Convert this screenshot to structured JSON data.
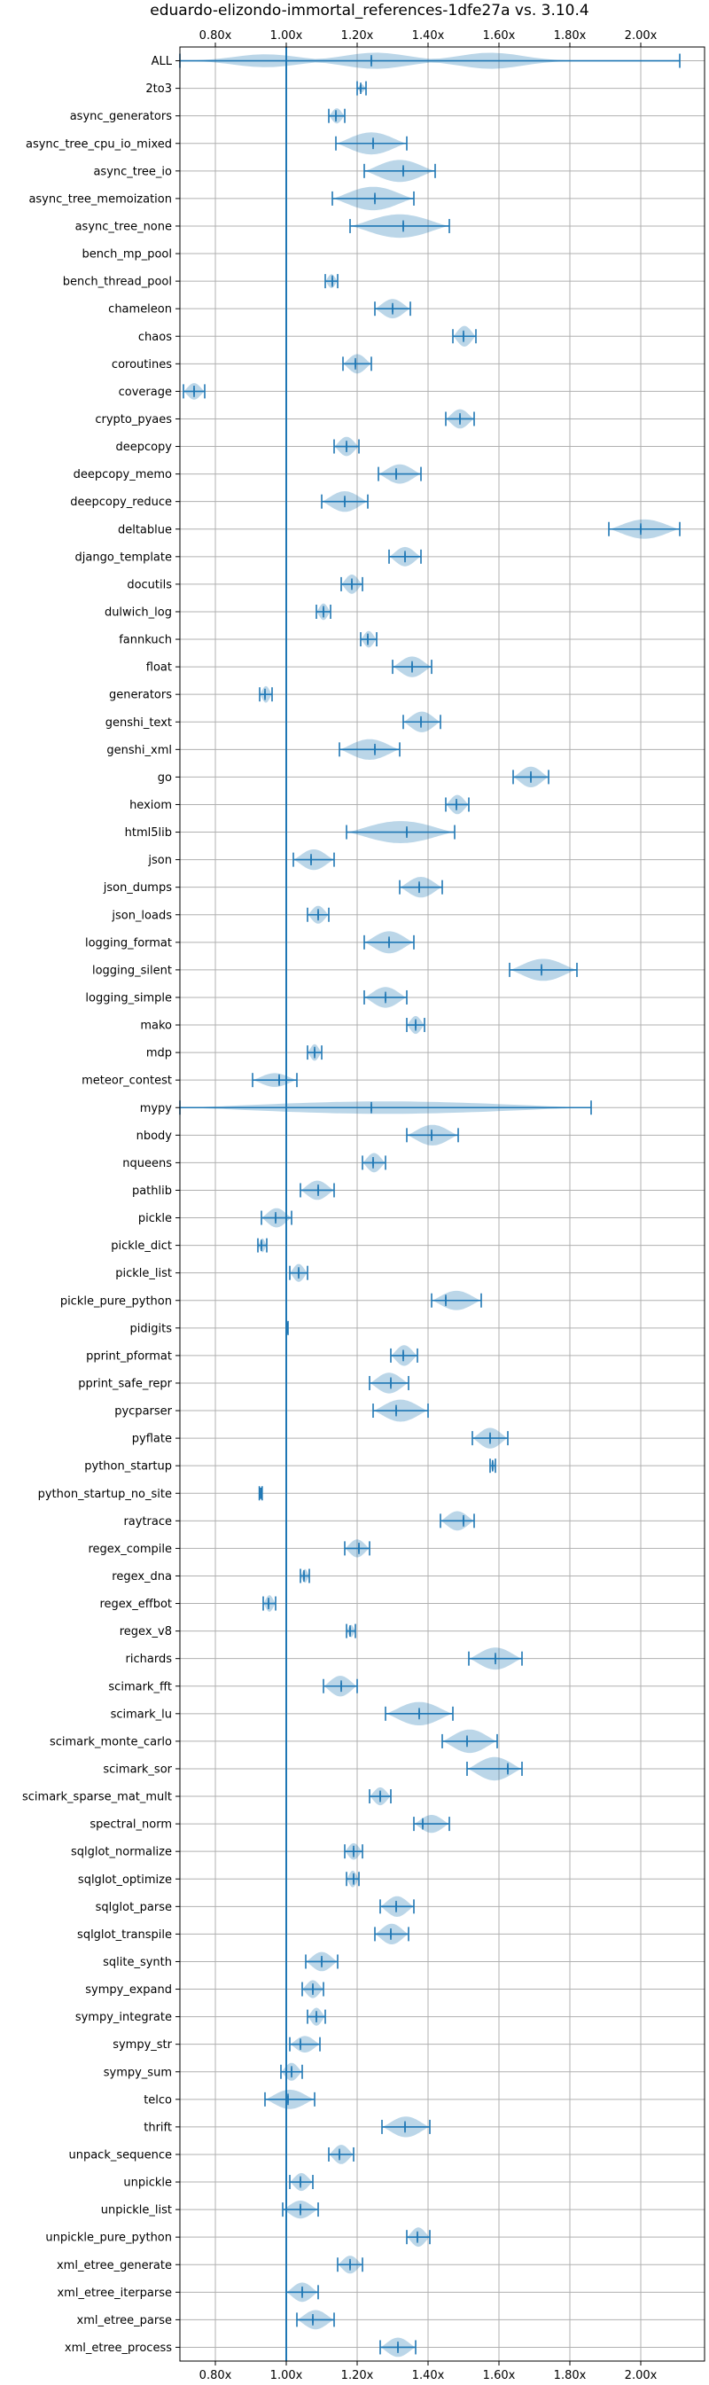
{
  "chart_data": {
    "type": "violin",
    "title": "eduardo-elizondo-immortal_references-1dfe27a vs. 3.10.4",
    "orientation": "horizontal",
    "x_ticks": [
      0.8,
      1.0,
      1.2,
      1.4,
      1.6,
      1.8,
      2.0
    ],
    "x_tick_labels": [
      "0.80x",
      "1.00x",
      "1.20x",
      "1.40x",
      "1.60x",
      "1.80x",
      "2.00x"
    ],
    "xlim": [
      0.7,
      2.18
    ],
    "reference_line": 1.0,
    "grid": true,
    "series": [
      {
        "name": "ALL",
        "min": 0.7,
        "max": 2.11,
        "mean": 1.24,
        "median": 1.24,
        "width": 0.6,
        "peaks": [
          0.93,
          1.25,
          1.58
        ]
      },
      {
        "name": "2to3",
        "min": 1.2,
        "max": 1.225,
        "mean": 1.21,
        "median": 1.21,
        "width": 0.3
      },
      {
        "name": "async_generators",
        "min": 1.12,
        "max": 1.165,
        "mean": 1.14,
        "median": 1.14,
        "width": 0.55
      },
      {
        "name": "async_tree_cpu_io_mixed",
        "min": 1.14,
        "max": 1.34,
        "mean": 1.245,
        "median": 1.245,
        "width": 0.8
      },
      {
        "name": "async_tree_io",
        "min": 1.22,
        "max": 1.42,
        "mean": 1.33,
        "median": 1.33,
        "width": 0.8
      },
      {
        "name": "async_tree_memoization",
        "min": 1.13,
        "max": 1.36,
        "mean": 1.25,
        "median": 1.25,
        "width": 0.85
      },
      {
        "name": "async_tree_none",
        "min": 1.18,
        "max": 1.46,
        "mean": 1.33,
        "median": 1.33,
        "width": 0.85
      },
      {
        "name": "bench_mp_pool"
      },
      {
        "name": "bench_thread_pool",
        "min": 1.11,
        "max": 1.145,
        "mean": 1.13,
        "median": 1.13,
        "width": 0.5
      },
      {
        "name": "chameleon",
        "min": 1.25,
        "max": 1.35,
        "mean": 1.3,
        "median": 1.3,
        "width": 0.7
      },
      {
        "name": "chaos",
        "min": 1.47,
        "max": 1.535,
        "mean": 1.5,
        "median": 1.5,
        "width": 0.75
      },
      {
        "name": "coroutines",
        "min": 1.16,
        "max": 1.24,
        "mean": 1.195,
        "median": 1.195,
        "width": 0.7
      },
      {
        "name": "coverage",
        "min": 0.71,
        "max": 0.77,
        "mean": 0.74,
        "median": 0.74,
        "width": 0.6
      },
      {
        "name": "crypto_pyaes",
        "min": 1.45,
        "max": 1.53,
        "mean": 1.49,
        "median": 1.49,
        "width": 0.7
      },
      {
        "name": "deepcopy",
        "min": 1.135,
        "max": 1.205,
        "mean": 1.17,
        "median": 1.17,
        "width": 0.7
      },
      {
        "name": "deepcopy_memo",
        "min": 1.26,
        "max": 1.38,
        "mean": 1.31,
        "median": 1.31,
        "width": 0.7
      },
      {
        "name": "deepcopy_reduce",
        "min": 1.1,
        "max": 1.23,
        "mean": 1.165,
        "median": 1.165,
        "width": 0.75
      },
      {
        "name": "deltablue",
        "min": 1.91,
        "max": 2.11,
        "mean": 2.0,
        "median": 2.0,
        "width": 0.7
      },
      {
        "name": "django_template",
        "min": 1.29,
        "max": 1.38,
        "mean": 1.335,
        "median": 1.335,
        "width": 0.7
      },
      {
        "name": "docutils",
        "min": 1.155,
        "max": 1.215,
        "mean": 1.185,
        "median": 1.185,
        "width": 0.7
      },
      {
        "name": "dulwich_log",
        "min": 1.085,
        "max": 1.125,
        "mean": 1.105,
        "median": 1.105,
        "width": 0.6
      },
      {
        "name": "fannkuch",
        "min": 1.21,
        "max": 1.255,
        "mean": 1.23,
        "median": 1.23,
        "width": 0.6
      },
      {
        "name": "float",
        "min": 1.3,
        "max": 1.41,
        "mean": 1.355,
        "median": 1.355,
        "width": 0.75
      },
      {
        "name": "generators",
        "min": 0.925,
        "max": 0.96,
        "mean": 0.94,
        "median": 0.94,
        "width": 0.6
      },
      {
        "name": "genshi_text",
        "min": 1.33,
        "max": 1.435,
        "mean": 1.38,
        "median": 1.38,
        "width": 0.75
      },
      {
        "name": "genshi_xml",
        "min": 1.15,
        "max": 1.32,
        "mean": 1.25,
        "median": 1.25,
        "width": 0.75
      },
      {
        "name": "go",
        "min": 1.64,
        "max": 1.74,
        "mean": 1.69,
        "median": 1.69,
        "width": 0.75
      },
      {
        "name": "hexiom",
        "min": 1.45,
        "max": 1.515,
        "mean": 1.48,
        "median": 1.48,
        "width": 0.7
      },
      {
        "name": "html5lib",
        "min": 1.17,
        "max": 1.475,
        "mean": 1.34,
        "median": 1.34,
        "width": 0.8
      },
      {
        "name": "json",
        "min": 1.02,
        "max": 1.135,
        "mean": 1.07,
        "median": 1.07,
        "width": 0.75
      },
      {
        "name": "json_dumps",
        "min": 1.32,
        "max": 1.44,
        "mean": 1.375,
        "median": 1.375,
        "width": 0.75
      },
      {
        "name": "json_loads",
        "min": 1.06,
        "max": 1.12,
        "mean": 1.09,
        "median": 1.09,
        "width": 0.65
      },
      {
        "name": "logging_format",
        "min": 1.22,
        "max": 1.36,
        "mean": 1.29,
        "median": 1.29,
        "width": 0.8
      },
      {
        "name": "logging_silent",
        "min": 1.63,
        "max": 1.82,
        "mean": 1.72,
        "median": 1.72,
        "width": 0.8
      },
      {
        "name": "logging_simple",
        "min": 1.22,
        "max": 1.34,
        "mean": 1.28,
        "median": 1.28,
        "width": 0.75
      },
      {
        "name": "mako",
        "min": 1.34,
        "max": 1.39,
        "mean": 1.365,
        "median": 1.365,
        "width": 0.65
      },
      {
        "name": "mdp",
        "min": 1.06,
        "max": 1.1,
        "mean": 1.08,
        "median": 1.08,
        "width": 0.6
      },
      {
        "name": "meteor_contest",
        "min": 0.905,
        "max": 1.03,
        "mean": 0.98,
        "median": 0.98,
        "width": 0.5
      },
      {
        "name": "mypy",
        "min": 0.7,
        "max": 1.86,
        "mean": 1.24,
        "median": 1.24,
        "width": 0.45
      },
      {
        "name": "nbody",
        "min": 1.34,
        "max": 1.485,
        "mean": 1.41,
        "median": 1.41,
        "width": 0.75
      },
      {
        "name": "nqueens",
        "min": 1.215,
        "max": 1.28,
        "mean": 1.245,
        "median": 1.245,
        "width": 0.7
      },
      {
        "name": "pathlib",
        "min": 1.04,
        "max": 1.135,
        "mean": 1.09,
        "median": 1.09,
        "width": 0.7
      },
      {
        "name": "pickle",
        "min": 0.93,
        "max": 1.015,
        "mean": 0.97,
        "median": 0.97,
        "width": 0.7
      },
      {
        "name": "pickle_dict",
        "min": 0.92,
        "max": 0.945,
        "mean": 0.93,
        "median": 0.93,
        "width": 0.5
      },
      {
        "name": "pickle_list",
        "min": 1.01,
        "max": 1.06,
        "mean": 1.035,
        "median": 1.035,
        "width": 0.65
      },
      {
        "name": "pickle_pure_python",
        "min": 1.41,
        "max": 1.55,
        "mean": 1.45,
        "median": 1.45,
        "width": 0.7
      },
      {
        "name": "pidigits",
        "min": 1.0,
        "max": 1.005,
        "mean": 1.002,
        "median": 1.002,
        "width": 0.3
      },
      {
        "name": "pprint_pformat",
        "min": 1.295,
        "max": 1.37,
        "mean": 1.33,
        "median": 1.33,
        "width": 0.75
      },
      {
        "name": "pprint_safe_repr",
        "min": 1.235,
        "max": 1.345,
        "mean": 1.295,
        "median": 1.295,
        "width": 0.75
      },
      {
        "name": "pycparser",
        "min": 1.245,
        "max": 1.4,
        "mean": 1.31,
        "median": 1.31,
        "width": 0.8
      },
      {
        "name": "pyflate",
        "min": 1.525,
        "max": 1.625,
        "mean": 1.575,
        "median": 1.575,
        "width": 0.75
      },
      {
        "name": "python_startup",
        "min": 1.575,
        "max": 1.59,
        "mean": 1.582,
        "median": 1.582,
        "width": 0.4
      },
      {
        "name": "python_startup_no_site",
        "min": 0.924,
        "max": 0.932,
        "mean": 0.928,
        "median": 0.928,
        "width": 0.3
      },
      {
        "name": "raytrace",
        "min": 1.435,
        "max": 1.53,
        "mean": 1.5,
        "median": 1.5,
        "width": 0.7
      },
      {
        "name": "regex_compile",
        "min": 1.165,
        "max": 1.235,
        "mean": 1.205,
        "median": 1.205,
        "width": 0.65
      },
      {
        "name": "regex_dna",
        "min": 1.04,
        "max": 1.065,
        "mean": 1.05,
        "median": 1.05,
        "width": 0.5
      },
      {
        "name": "regex_effbot",
        "min": 0.935,
        "max": 0.97,
        "mean": 0.95,
        "median": 0.95,
        "width": 0.6
      },
      {
        "name": "regex_v8",
        "min": 1.17,
        "max": 1.195,
        "mean": 1.18,
        "median": 1.18,
        "width": 0.45
      },
      {
        "name": "richards",
        "min": 1.515,
        "max": 1.665,
        "mean": 1.59,
        "median": 1.59,
        "width": 0.8
      },
      {
        "name": "scimark_fft",
        "min": 1.105,
        "max": 1.2,
        "mean": 1.155,
        "median": 1.155,
        "width": 0.75
      },
      {
        "name": "scimark_lu",
        "min": 1.28,
        "max": 1.47,
        "mean": 1.375,
        "median": 1.375,
        "width": 0.85
      },
      {
        "name": "scimark_monte_carlo",
        "min": 1.44,
        "max": 1.595,
        "mean": 1.51,
        "median": 1.51,
        "width": 0.85
      },
      {
        "name": "scimark_sor",
        "min": 1.51,
        "max": 1.665,
        "mean": 1.625,
        "median": 1.625,
        "width": 0.85
      },
      {
        "name": "scimark_sparse_mat_mult",
        "min": 1.235,
        "max": 1.295,
        "mean": 1.265,
        "median": 1.265,
        "width": 0.65
      },
      {
        "name": "spectral_norm",
        "min": 1.36,
        "max": 1.46,
        "mean": 1.385,
        "median": 1.385,
        "width": 0.65
      },
      {
        "name": "sqlglot_normalize",
        "min": 1.165,
        "max": 1.215,
        "mean": 1.19,
        "median": 1.19,
        "width": 0.6
      },
      {
        "name": "sqlglot_optimize",
        "min": 1.17,
        "max": 1.205,
        "mean": 1.19,
        "median": 1.19,
        "width": 0.6
      },
      {
        "name": "sqlglot_parse",
        "min": 1.265,
        "max": 1.36,
        "mean": 1.31,
        "median": 1.31,
        "width": 0.75
      },
      {
        "name": "sqlglot_transpile",
        "min": 1.25,
        "max": 1.345,
        "mean": 1.295,
        "median": 1.295,
        "width": 0.75
      },
      {
        "name": "sqlite_synth",
        "min": 1.055,
        "max": 1.145,
        "mean": 1.1,
        "median": 1.1,
        "width": 0.7
      },
      {
        "name": "sympy_expand",
        "min": 1.045,
        "max": 1.105,
        "mean": 1.075,
        "median": 1.075,
        "width": 0.65
      },
      {
        "name": "sympy_integrate",
        "min": 1.06,
        "max": 1.11,
        "mean": 1.085,
        "median": 1.085,
        "width": 0.65
      },
      {
        "name": "sympy_str",
        "min": 1.01,
        "max": 1.095,
        "mean": 1.04,
        "median": 1.04,
        "width": 0.6
      },
      {
        "name": "sympy_sum",
        "min": 0.985,
        "max": 1.045,
        "mean": 1.015,
        "median": 1.015,
        "width": 0.65
      },
      {
        "name": "telco",
        "min": 0.94,
        "max": 1.08,
        "mean": 1.005,
        "median": 1.005,
        "width": 0.7
      },
      {
        "name": "thrift",
        "min": 1.27,
        "max": 1.405,
        "mean": 1.335,
        "median": 1.335,
        "width": 0.75
      },
      {
        "name": "unpack_sequence",
        "min": 1.12,
        "max": 1.19,
        "mean": 1.15,
        "median": 1.15,
        "width": 0.7
      },
      {
        "name": "unpickle",
        "min": 1.01,
        "max": 1.075,
        "mean": 1.04,
        "median": 1.04,
        "width": 0.65
      },
      {
        "name": "unpickle_list",
        "min": 0.99,
        "max": 1.09,
        "mean": 1.04,
        "median": 1.04,
        "width": 0.65
      },
      {
        "name": "unpickle_pure_python",
        "min": 1.34,
        "max": 1.405,
        "mean": 1.37,
        "median": 1.37,
        "width": 0.7
      },
      {
        "name": "xml_etree_generate",
        "min": 1.145,
        "max": 1.215,
        "mean": 1.18,
        "median": 1.18,
        "width": 0.65
      },
      {
        "name": "xml_etree_iterparse",
        "min": 1.0,
        "max": 1.09,
        "mean": 1.045,
        "median": 1.045,
        "width": 0.7
      },
      {
        "name": "xml_etree_parse",
        "min": 1.03,
        "max": 1.135,
        "mean": 1.075,
        "median": 1.075,
        "width": 0.7
      },
      {
        "name": "xml_etree_process",
        "min": 1.265,
        "max": 1.365,
        "mean": 1.315,
        "median": 1.315,
        "width": 0.7
      }
    ]
  }
}
